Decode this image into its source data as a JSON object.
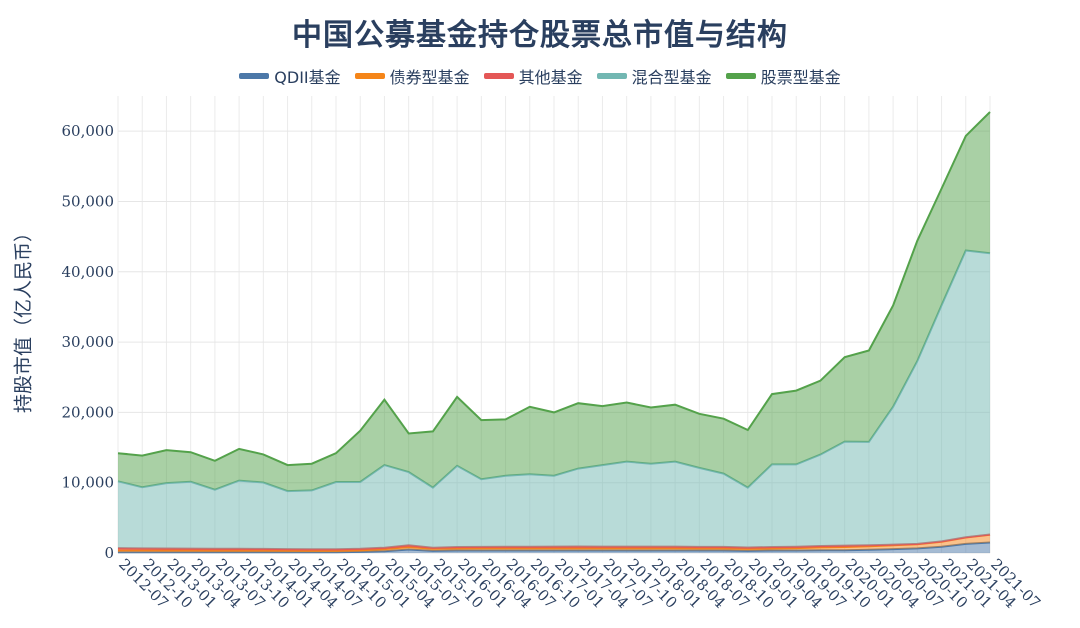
{
  "chart_data": {
    "type": "area",
    "title": "中国公募基金持仓股票总市值与结构",
    "ylabel": "持股市值（亿人民币）",
    "xlabel": "",
    "ylim": [
      0,
      65000
    ],
    "yticks": [
      0,
      10000,
      20000,
      30000,
      40000,
      50000,
      60000
    ],
    "ytick_labels": [
      "0",
      "10,000",
      "20,000",
      "30,000",
      "40,000",
      "50,000",
      "60,000"
    ],
    "stacked": true,
    "legend_position": "top",
    "grid": true,
    "categories": [
      "2012-07",
      "2012-10",
      "2013-01",
      "2013-04",
      "2013-07",
      "2013-10",
      "2014-01",
      "2014-04",
      "2014-07",
      "2014-10",
      "2015-01",
      "2015-04",
      "2015-07",
      "2015-10",
      "2016-01",
      "2016-04",
      "2016-07",
      "2016-10",
      "2017-01",
      "2017-04",
      "2017-07",
      "2017-10",
      "2018-01",
      "2018-04",
      "2018-07",
      "2018-10",
      "2019-01",
      "2019-04",
      "2019-07",
      "2019-10",
      "2020-01",
      "2020-04",
      "2020-07",
      "2020-10",
      "2021-01",
      "2021-04",
      "2021-07"
    ],
    "series": [
      {
        "name": "QDII基金",
        "color": "#4c78a8",
        "values": [
          100,
          100,
          100,
          100,
          100,
          100,
          100,
          100,
          100,
          100,
          150,
          250,
          500,
          300,
          350,
          350,
          350,
          350,
          350,
          350,
          350,
          350,
          350,
          350,
          350,
          350,
          300,
          350,
          350,
          400,
          400,
          450,
          550,
          650,
          900,
          1300,
          1500
        ]
      },
      {
        "name": "债券型基金",
        "color": "#f58518",
        "values": [
          300,
          280,
          270,
          270,
          260,
          260,
          250,
          240,
          230,
          220,
          250,
          300,
          350,
          300,
          300,
          320,
          330,
          330,
          330,
          330,
          330,
          330,
          330,
          330,
          300,
          300,
          280,
          300,
          350,
          400,
          450,
          500,
          550,
          600,
          700,
          900,
          1100
        ]
      },
      {
        "name": "其他基金",
        "color": "#e45756",
        "values": [
          300,
          280,
          270,
          260,
          250,
          240,
          230,
          220,
          210,
          200,
          200,
          200,
          250,
          150,
          200,
          200,
          200,
          220,
          230,
          250,
          230,
          230,
          230,
          230,
          220,
          220,
          200,
          200,
          200,
          200,
          200,
          150,
          100,
          50,
          50,
          30,
          30
        ]
      },
      {
        "name": "混合型基金",
        "color": "#72b7b2",
        "values": [
          9500,
          8700,
          9300,
          9500,
          8400,
          9700,
          9450,
          8240,
          8360,
          9580,
          9500,
          11750,
          10400,
          8550,
          11550,
          9630,
          10120,
          10300,
          10090,
          11070,
          11590,
          12090,
          11790,
          12090,
          11230,
          10430,
          8520,
          11750,
          11700,
          13000,
          14800,
          14700,
          19600,
          26000,
          33600,
          40800,
          40000
        ]
      },
      {
        "name": "股票型基金",
        "color": "#54a24b",
        "values": [
          4000,
          4500,
          4700,
          4200,
          4100,
          4500,
          4000,
          3700,
          3800,
          4100,
          7300,
          9300,
          5500,
          8000,
          9800,
          8400,
          8000,
          9600,
          9000,
          9300,
          8400,
          8400,
          8000,
          8100,
          7700,
          7800,
          8200,
          10000,
          10500,
          10500,
          12000,
          13000,
          14400,
          17100,
          16600,
          16300,
          20100
        ]
      }
    ]
  }
}
